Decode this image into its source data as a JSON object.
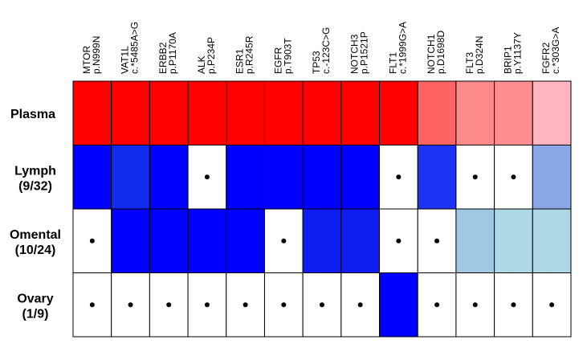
{
  "chart_data": {
    "type": "heatmap",
    "columns": [
      {
        "gene": "MTOR",
        "variant": "p.N999N"
      },
      {
        "gene": "VAT1L",
        "variant": "c.*5485A>G"
      },
      {
        "gene": "ERBB2",
        "variant": "p.P1170A"
      },
      {
        "gene": "ALK",
        "variant": "p.P234P"
      },
      {
        "gene": "ESR1",
        "variant": "p.R245R"
      },
      {
        "gene": "EGFR",
        "variant": "p.T903T"
      },
      {
        "gene": "TP53",
        "variant": "c.-123C>G"
      },
      {
        "gene": "NOTCH3",
        "variant": "p.P1521P"
      },
      {
        "gene": "FLT1",
        "variant": "c.*1999G>A"
      },
      {
        "gene": "NOTCH1",
        "variant": "p.D1698D"
      },
      {
        "gene": "FLT3",
        "variant": "p.D324N"
      },
      {
        "gene": "BRIP1",
        "variant": "p.Y1137Y"
      },
      {
        "gene": "FGFR2",
        "variant": "c.*303G>A"
      }
    ],
    "rows": [
      {
        "label": "Plasma",
        "sublabel": ""
      },
      {
        "label": "Lymph",
        "sublabel": "(9/32)"
      },
      {
        "label": "Omental",
        "sublabel": "(10/24)"
      },
      {
        "label": "Ovary",
        "sublabel": "(1/9)"
      }
    ],
    "cells": [
      [
        {
          "color": "#ff0000",
          "dot": false
        },
        {
          "color": "#ff0000",
          "dot": false
        },
        {
          "color": "#ff0000",
          "dot": false
        },
        {
          "color": "#ff0000",
          "dot": false
        },
        {
          "color": "#ff0000",
          "dot": false
        },
        {
          "color": "#ff0000",
          "dot": false
        },
        {
          "color": "#ff0000",
          "dot": false
        },
        {
          "color": "#ff0000",
          "dot": false
        },
        {
          "color": "#ff0000",
          "dot": false
        },
        {
          "color": "#ff6464",
          "dot": false
        },
        {
          "color": "#ff8a8a",
          "dot": false
        },
        {
          "color": "#ff8c90",
          "dot": false
        },
        {
          "color": "#ffb6c0",
          "dot": false
        }
      ],
      [
        {
          "color": "#0000ff",
          "dot": false
        },
        {
          "color": "#0f2cef",
          "dot": false
        },
        {
          "color": "#0000ff",
          "dot": false
        },
        {
          "color": "#ffffff",
          "dot": true
        },
        {
          "color": "#0000ff",
          "dot": false
        },
        {
          "color": "#0000ff",
          "dot": false
        },
        {
          "color": "#0000ff",
          "dot": false
        },
        {
          "color": "#0000ff",
          "dot": false
        },
        {
          "color": "#ffffff",
          "dot": true
        },
        {
          "color": "#1e32f5",
          "dot": false
        },
        {
          "color": "#ffffff",
          "dot": true
        },
        {
          "color": "#ffffff",
          "dot": true
        },
        {
          "color": "#8aa8e8",
          "dot": false
        }
      ],
      [
        {
          "color": "#ffffff",
          "dot": true
        },
        {
          "color": "#0000ff",
          "dot": false
        },
        {
          "color": "#0000ff",
          "dot": false
        },
        {
          "color": "#0000ff",
          "dot": false
        },
        {
          "color": "#0000ff",
          "dot": false
        },
        {
          "color": "#ffffff",
          "dot": true
        },
        {
          "color": "#0f1ef0",
          "dot": false
        },
        {
          "color": "#0f1ef0",
          "dot": false
        },
        {
          "color": "#ffffff",
          "dot": true
        },
        {
          "color": "#ffffff",
          "dot": true
        },
        {
          "color": "#a0c8e4",
          "dot": false
        },
        {
          "color": "#add8e6",
          "dot": false
        },
        {
          "color": "#add8e6",
          "dot": false
        }
      ],
      [
        {
          "color": "#ffffff",
          "dot": true
        },
        {
          "color": "#ffffff",
          "dot": true
        },
        {
          "color": "#ffffff",
          "dot": true
        },
        {
          "color": "#ffffff",
          "dot": true
        },
        {
          "color": "#ffffff",
          "dot": true
        },
        {
          "color": "#ffffff",
          "dot": true
        },
        {
          "color": "#ffffff",
          "dot": true
        },
        {
          "color": "#ffffff",
          "dot": true
        },
        {
          "color": "#0000ff",
          "dot": false
        },
        {
          "color": "#ffffff",
          "dot": true
        },
        {
          "color": "#ffffff",
          "dot": true
        },
        {
          "color": "#ffffff",
          "dot": true
        },
        {
          "color": "#ffffff",
          "dot": true
        }
      ]
    ],
    "grid_color": "#000000",
    "title": "",
    "xlabel": "",
    "ylabel": ""
  }
}
